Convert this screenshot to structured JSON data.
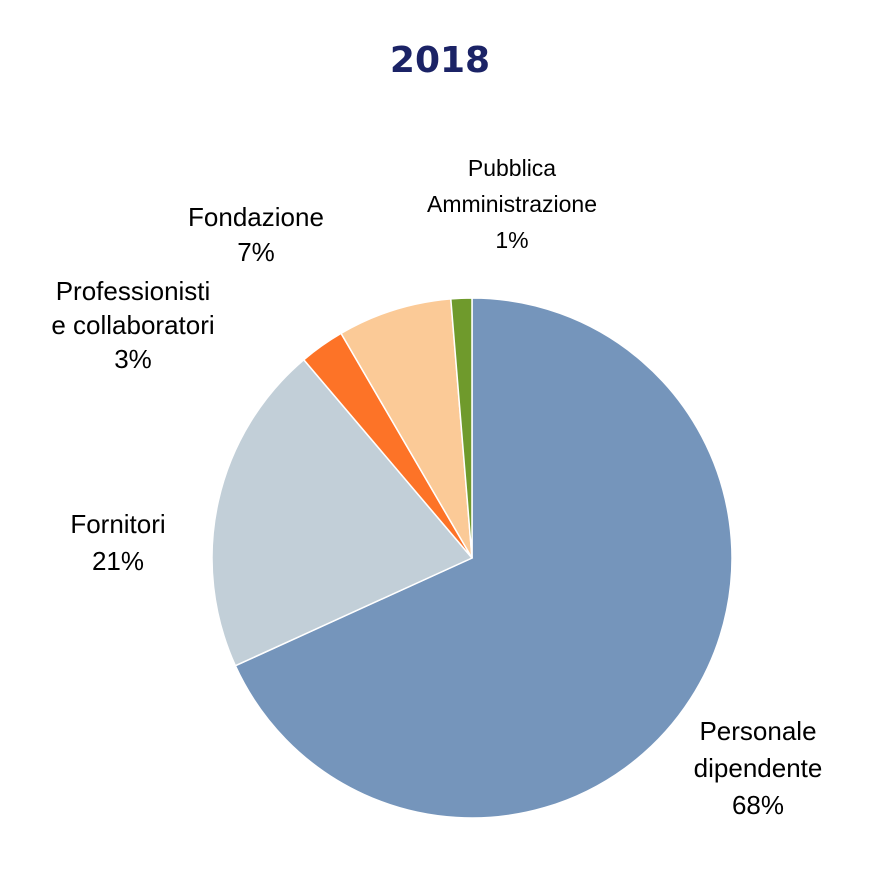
{
  "chart_data": {
    "type": "pie",
    "title": "2018",
    "start_angle_deg": 0,
    "direction": "clockwise",
    "slices": [
      {
        "label_lines": [
          "Personale",
          "dipendente"
        ],
        "value_label": "68%",
        "value": 68.2,
        "color": "#7595bb"
      },
      {
        "label_lines": [
          "Fornitori"
        ],
        "value_label": "21%",
        "value": 20.6,
        "color": "#c2cfd8"
      },
      {
        "label_lines": [
          "Professionisti",
          "e collaboratori"
        ],
        "value_label": "3%",
        "value": 2.8,
        "color": "#fd7327"
      },
      {
        "label_lines": [
          "Fondazione"
        ],
        "value_label": "7%",
        "value": 7.1,
        "color": "#fbca97"
      },
      {
        "label_lines": [
          "Pubblica",
          "Amministrazione"
        ],
        "value_label": "1%",
        "value": 1.3,
        "color": "#6f9a2c"
      }
    ],
    "legend": "none",
    "data_labels": "outside"
  }
}
